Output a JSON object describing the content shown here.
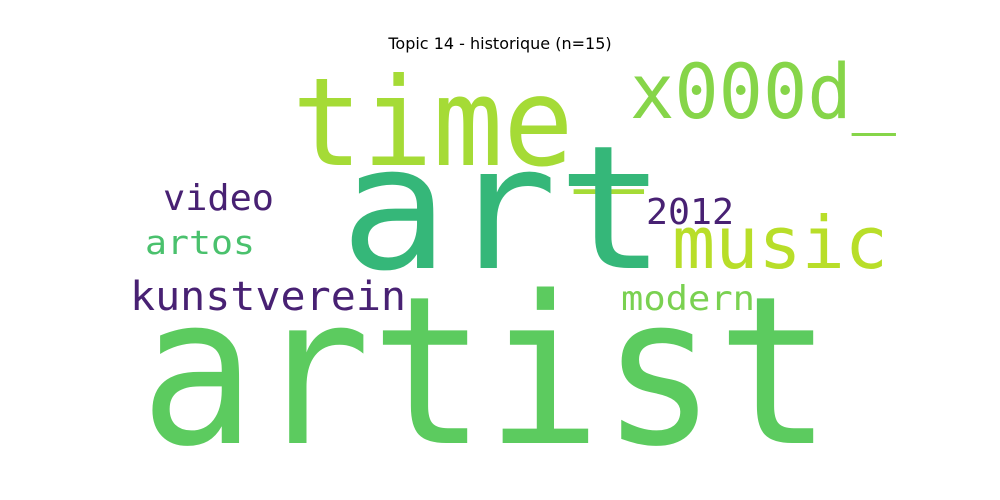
{
  "title": "Topic 14 - historique (n=15)",
  "words": [
    {
      "text": "artist",
      "color": "#5ccb5f"
    },
    {
      "text": "art",
      "color": "#35b779"
    },
    {
      "text": "time_",
      "color": "#a5db36"
    },
    {
      "text": "x000d_",
      "color": "#86d549"
    },
    {
      "text": "music",
      "color": "#b8de29"
    },
    {
      "text": "kunstverein",
      "color": "#482173"
    },
    {
      "text": "video",
      "color": "#482173"
    },
    {
      "text": "2012",
      "color": "#482173"
    },
    {
      "text": "artos",
      "color": "#4ac16d"
    },
    {
      "text": "modern",
      "color": "#7ad151"
    }
  ]
}
